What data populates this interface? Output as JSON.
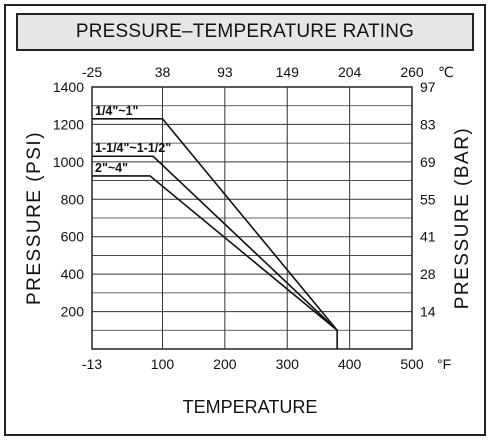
{
  "title": "PRESSURE–TEMPERATURE RATING",
  "chart_data": {
    "type": "line",
    "title": "PRESSURE–TEMPERATURE RATING",
    "xlabel": "TEMPERATURE",
    "ylabel_left": "PRESSURE (PSI)",
    "ylabel_right": "PRESSURE (BAR)",
    "x_units_bottom": "°F",
    "x_units_top": "℃",
    "xlim": [
      -13,
      500
    ],
    "ylim": [
      0,
      1400
    ],
    "x_ticks_bottom": [
      "-13",
      "100",
      "200",
      "300",
      "400",
      "500"
    ],
    "x_ticks_top": [
      "-25",
      "38",
      "93",
      "149",
      "204",
      "260"
    ],
    "y_ticks_left": [
      "200",
      "400",
      "600",
      "800",
      "1000",
      "1200",
      "1400"
    ],
    "y_ticks_right": [
      "14",
      "28",
      "41",
      "55",
      "69",
      "83",
      "97"
    ],
    "grid": true,
    "series": [
      {
        "name": "1/4\"~1\"",
        "x": [
          -13,
          100,
          380,
          380
        ],
        "y": [
          1230,
          1230,
          100,
          0
        ]
      },
      {
        "name": "1-1/4\"~1-1/2\"",
        "x": [
          -13,
          85,
          380
        ],
        "y": [
          1030,
          1030,
          100
        ]
      },
      {
        "name": "2\"~4\"",
        "x": [
          -13,
          80,
          380
        ],
        "y": [
          925,
          925,
          100
        ]
      }
    ]
  }
}
